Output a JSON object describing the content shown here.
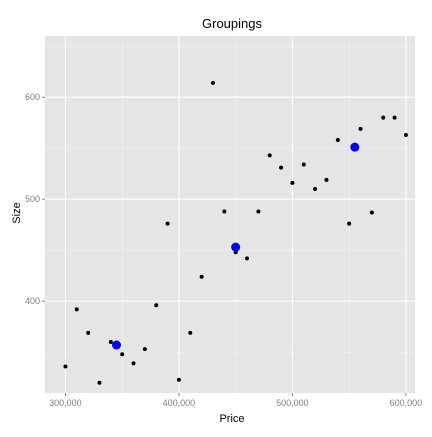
{
  "chart_data": {
    "type": "scatter",
    "title": "Groupings",
    "xlabel": "Price",
    "ylabel": "Size",
    "xlim": [
      282000,
      608000
    ],
    "ylim": [
      310000,
      660000
    ],
    "ylim_units": [
      310,
      660
    ],
    "x_ticks": [
      300000,
      400000,
      500000,
      600000
    ],
    "x_tick_labels": [
      "300,000",
      "400,000",
      "500,000",
      "600,000"
    ],
    "y_ticks": [
      400,
      500,
      600
    ],
    "y_tick_labels": [
      "400",
      "500",
      "600"
    ],
    "grid": true,
    "legend": "none",
    "colors": {
      "points": "#000000",
      "centers": "#0000ff",
      "panel": "#e5e5e5",
      "grid": "#ffffff"
    },
    "series": [
      {
        "role": "points",
        "x": [
          300000,
          310000,
          320000,
          330000,
          340000,
          350000,
          360000,
          370000,
          380000,
          390000,
          400000,
          410000,
          420000,
          430000,
          440000,
          450000,
          460000,
          470000,
          480000,
          490000,
          500000,
          510000,
          520000,
          530000,
          540000,
          550000,
          560000,
          570000,
          580000,
          590000,
          600000
        ],
        "y": [
          336,
          392,
          369,
          320,
          360,
          348,
          339,
          353,
          396,
          476,
          323,
          369,
          424,
          614,
          488,
          448,
          442,
          488,
          543,
          531,
          516,
          534,
          510,
          519,
          558,
          476,
          569,
          487,
          580,
          580,
          563
        ]
      },
      {
        "role": "centers",
        "x": [
          345000,
          450000,
          555000
        ],
        "y": [
          357,
          453,
          551
        ]
      }
    ]
  }
}
